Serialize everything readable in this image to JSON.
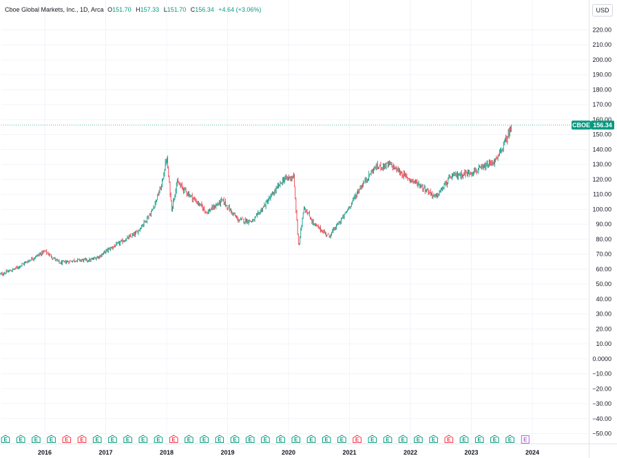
{
  "legend": {
    "title": "Cboe Global Markets, Inc., 1D, Arca",
    "open_label": "O",
    "open": "151.70",
    "high_label": "H",
    "high": "157.33",
    "low_label": "L",
    "low": "151.70",
    "close_label": "C",
    "close": "156.34",
    "change": "+4.64 (+3.06%)"
  },
  "currency": "USD",
  "last_price": {
    "symbol": "CBOE",
    "value": "156.34"
  },
  "earnings_marker_letter": "E",
  "colors": {
    "up": "#089981",
    "down": "#f23645",
    "grid": "#f0f3fa",
    "earnings_beat": "#089981",
    "earnings_miss": "#f23645",
    "earnings_upcoming": "#b05ee0"
  },
  "chart_data": {
    "type": "line",
    "x_axis": {
      "ticks": [
        "2016",
        "2017",
        "2018",
        "2019",
        "2020",
        "2021",
        "2022",
        "2023",
        "2024"
      ]
    },
    "y_axis": {
      "range": [
        -50,
        220
      ],
      "ticks": [
        "220.00",
        "210.00",
        "200.00",
        "190.00",
        "180.00",
        "170.00",
        "160.00",
        "150.00",
        "140.00",
        "130.00",
        "120.00",
        "110.00",
        "100.00",
        "90.00",
        "80.00",
        "70.00",
        "60.00",
        "50.00",
        "40.00",
        "30.00",
        "20.00",
        "10.00",
        "0.0000",
        "−10.00",
        "−20.00",
        "−30.00",
        "−40.00",
        "−50.00"
      ]
    },
    "grid": true,
    "series": [
      {
        "x": [
          "2015-04",
          "2015-07",
          "2015-10",
          "2016-01",
          "2016-04",
          "2016-07",
          "2016-10",
          "2016-12",
          "2017-01",
          "2017-04",
          "2017-07",
          "2017-10",
          "2017-12",
          "2018-01",
          "2018-02",
          "2018-03",
          "2018-06",
          "2018-09",
          "2018-12",
          "2019-03",
          "2019-06",
          "2019-09",
          "2019-12",
          "2020-02",
          "2020-03",
          "2020-04",
          "2020-06",
          "2020-09",
          "2020-12",
          "2021-03",
          "2021-06",
          "2021-09",
          "2021-12",
          "2022-03",
          "2022-06",
          "2022-09",
          "2022-12",
          "2023-03",
          "2023-06",
          "2023-08",
          "2023-09"
        ],
        "values": [
          56,
          60,
          66,
          72,
          64,
          66,
          66,
          69,
          72,
          78,
          84,
          98,
          116,
          135,
          100,
          118,
          108,
          98,
          106,
          93,
          92,
          106,
          120,
          122,
          74,
          102,
          90,
          82,
          96,
          114,
          128,
          130,
          122,
          116,
          108,
          122,
          124,
          127,
          133,
          148,
          156
        ]
      }
    ],
    "earnings_events": [
      {
        "date": "2015-04",
        "result": "beat"
      },
      {
        "date": "2015-07",
        "result": "beat"
      },
      {
        "date": "2015-10",
        "result": "beat"
      },
      {
        "date": "2016-01",
        "result": "beat"
      },
      {
        "date": "2016-04",
        "result": "miss"
      },
      {
        "date": "2016-07",
        "result": "miss"
      },
      {
        "date": "2016-10",
        "result": "beat"
      },
      {
        "date": "2017-01",
        "result": "beat"
      },
      {
        "date": "2017-04",
        "result": "beat"
      },
      {
        "date": "2017-07",
        "result": "beat"
      },
      {
        "date": "2017-10",
        "result": "beat"
      },
      {
        "date": "2018-02",
        "result": "miss"
      },
      {
        "date": "2018-05",
        "result": "beat"
      },
      {
        "date": "2018-08",
        "result": "beat"
      },
      {
        "date": "2018-11",
        "result": "beat"
      },
      {
        "date": "2019-02",
        "result": "beat"
      },
      {
        "date": "2019-05",
        "result": "beat"
      },
      {
        "date": "2019-08",
        "result": "beat"
      },
      {
        "date": "2019-11",
        "result": "beat"
      },
      {
        "date": "2020-02",
        "result": "beat"
      },
      {
        "date": "2020-05",
        "result": "beat"
      },
      {
        "date": "2020-08",
        "result": "beat"
      },
      {
        "date": "2020-11",
        "result": "beat"
      },
      {
        "date": "2021-02",
        "result": "miss"
      },
      {
        "date": "2021-05",
        "result": "beat"
      },
      {
        "date": "2021-08",
        "result": "beat"
      },
      {
        "date": "2021-11",
        "result": "beat"
      },
      {
        "date": "2022-02",
        "result": "beat"
      },
      {
        "date": "2022-05",
        "result": "beat"
      },
      {
        "date": "2022-08",
        "result": "miss"
      },
      {
        "date": "2022-11",
        "result": "beat"
      },
      {
        "date": "2023-02",
        "result": "beat"
      },
      {
        "date": "2023-05",
        "result": "beat"
      },
      {
        "date": "2023-08",
        "result": "beat"
      },
      {
        "date": "2023-11",
        "result": "upcoming"
      }
    ]
  }
}
